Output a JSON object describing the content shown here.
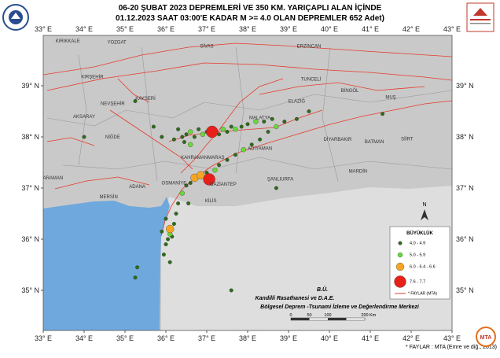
{
  "header": {
    "title_lines": [
      "06-20 ŞUBAT 2023  DEPREMLERİ VE 350  KM. YARIÇAPLI  ALAN  İÇİNDE",
      "01.12.2023 SAAT 03:00'E  KADAR M >= 4.0  OLAN DEPREMLER  652  Adet)"
    ]
  },
  "map": {
    "lon_ticks": [
      {
        "value": 33,
        "label": "33° E"
      },
      {
        "value": 34,
        "label": "34° E"
      },
      {
        "value": 35,
        "label": "35° E"
      },
      {
        "value": 36,
        "label": "36° E"
      },
      {
        "value": 37,
        "label": "37° E"
      },
      {
        "value": 38,
        "label": "38° E"
      },
      {
        "value": 39,
        "label": "39° E"
      },
      {
        "value": 40,
        "label": "40° E"
      },
      {
        "value": 41,
        "label": "41° E"
      },
      {
        "value": 42,
        "label": "42° E"
      },
      {
        "value": 43,
        "label": "43° E"
      }
    ],
    "lat_ticks": [
      {
        "value": 39,
        "label": "39° N"
      },
      {
        "value": 38,
        "label": "38° N"
      },
      {
        "value": 37,
        "label": "37° N"
      },
      {
        "value": 36,
        "label": "36° N"
      },
      {
        "value": 35,
        "label": "35° N"
      }
    ],
    "cities": [
      {
        "name": "KIRIKKALE",
        "lon": 33.6,
        "lat": 39.85
      },
      {
        "name": "YOZGAT",
        "lon": 34.8,
        "lat": 39.82
      },
      {
        "name": "SİVAS",
        "lon": 37.0,
        "lat": 39.75
      },
      {
        "name": "ERZİNCAN",
        "lon": 39.5,
        "lat": 39.75
      },
      {
        "name": "KIRŞEHİR",
        "lon": 34.2,
        "lat": 39.15
      },
      {
        "name": "TUNCELİ",
        "lon": 39.55,
        "lat": 39.1
      },
      {
        "name": "KAYSERİ",
        "lon": 35.5,
        "lat": 38.72
      },
      {
        "name": "NEVŞEHİR",
        "lon": 34.7,
        "lat": 38.62
      },
      {
        "name": "ELAZIĞ",
        "lon": 39.2,
        "lat": 38.67
      },
      {
        "name": "BİNGÖL",
        "lon": 40.5,
        "lat": 38.88
      },
      {
        "name": "MUŞ",
        "lon": 41.5,
        "lat": 38.75
      },
      {
        "name": "AKSARAY",
        "lon": 34.0,
        "lat": 38.37
      },
      {
        "name": "MALATYA",
        "lon": 38.3,
        "lat": 38.35
      },
      {
        "name": "NİĞDE",
        "lon": 34.7,
        "lat": 37.97
      },
      {
        "name": "DİYARBAKIR",
        "lon": 40.2,
        "lat": 37.92
      },
      {
        "name": "BATMAN",
        "lon": 41.1,
        "lat": 37.88
      },
      {
        "name": "SİİRT",
        "lon": 41.9,
        "lat": 37.93
      },
      {
        "name": "ADIYAMAN",
        "lon": 38.3,
        "lat": 37.75
      },
      {
        "name": "KAHRAMANMARAŞ",
        "lon": 36.9,
        "lat": 37.57
      },
      {
        "name": "MARDİN",
        "lon": 40.7,
        "lat": 37.3
      },
      {
        "name": "KARAMAN",
        "lon": 33.2,
        "lat": 37.17
      },
      {
        "name": "ŞANLIURFA",
        "lon": 38.8,
        "lat": 37.15
      },
      {
        "name": "OSMANİYE",
        "lon": 36.2,
        "lat": 37.07
      },
      {
        "name": "GAZİANTEP",
        "lon": 37.4,
        "lat": 37.05
      },
      {
        "name": "ADANA",
        "lon": 35.3,
        "lat": 37.0
      },
      {
        "name": "MERSİN",
        "lon": 34.6,
        "lat": 36.8
      },
      {
        "name": "KİLİS",
        "lon": 37.1,
        "lat": 36.72
      }
    ],
    "earthquakes": [
      {
        "lon": 36.4,
        "lat": 38.0,
        "class": 0
      },
      {
        "lon": 36.5,
        "lat": 38.05,
        "class": 0
      },
      {
        "lon": 36.6,
        "lat": 38.1,
        "class": 1
      },
      {
        "lon": 36.7,
        "lat": 38.0,
        "class": 0
      },
      {
        "lon": 36.8,
        "lat": 38.15,
        "class": 0
      },
      {
        "lon": 36.9,
        "lat": 38.05,
        "class": 1
      },
      {
        "lon": 37.0,
        "lat": 38.1,
        "class": 0
      },
      {
        "lon": 37.3,
        "lat": 38.05,
        "class": 0
      },
      {
        "lon": 37.4,
        "lat": 38.15,
        "class": 1
      },
      {
        "lon": 37.5,
        "lat": 38.1,
        "class": 0
      },
      {
        "lon": 37.6,
        "lat": 38.2,
        "class": 0
      },
      {
        "lon": 37.7,
        "lat": 38.15,
        "class": 1
      },
      {
        "lon": 37.85,
        "lat": 38.2,
        "class": 0
      },
      {
        "lon": 38.0,
        "lat": 38.25,
        "class": 0
      },
      {
        "lon": 38.2,
        "lat": 38.3,
        "class": 1
      },
      {
        "lon": 38.4,
        "lat": 38.3,
        "class": 0
      },
      {
        "lon": 38.6,
        "lat": 38.35,
        "class": 0
      },
      {
        "lon": 36.3,
        "lat": 38.15,
        "class": 0
      },
      {
        "lon": 36.45,
        "lat": 37.9,
        "class": 0
      },
      {
        "lon": 36.6,
        "lat": 37.85,
        "class": 1
      },
      {
        "lon": 36.2,
        "lat": 37.95,
        "class": 0
      },
      {
        "lon": 35.9,
        "lat": 38.0,
        "class": 0
      },
      {
        "lon": 35.7,
        "lat": 38.2,
        "class": 0
      },
      {
        "lon": 36.15,
        "lat": 36.05,
        "class": 0
      },
      {
        "lon": 36.1,
        "lat": 36.1,
        "class": 1
      },
      {
        "lon": 36.2,
        "lat": 36.3,
        "class": 0
      },
      {
        "lon": 36.05,
        "lat": 36.0,
        "class": 0
      },
      {
        "lon": 36.25,
        "lat": 36.5,
        "class": 0
      },
      {
        "lon": 36.3,
        "lat": 36.7,
        "class": 0
      },
      {
        "lon": 36.4,
        "lat": 36.9,
        "class": 1
      },
      {
        "lon": 36.5,
        "lat": 37.05,
        "class": 0
      },
      {
        "lon": 36.6,
        "lat": 37.1,
        "class": 0
      },
      {
        "lon": 37.0,
        "lat": 37.3,
        "class": 0
      },
      {
        "lon": 37.2,
        "lat": 37.35,
        "class": 1
      },
      {
        "lon": 37.3,
        "lat": 37.45,
        "class": 0
      },
      {
        "lon": 37.5,
        "lat": 37.55,
        "class": 0
      },
      {
        "lon": 37.7,
        "lat": 37.65,
        "class": 0
      },
      {
        "lon": 37.9,
        "lat": 37.75,
        "class": 1
      },
      {
        "lon": 38.1,
        "lat": 37.85,
        "class": 0
      },
      {
        "lon": 38.3,
        "lat": 37.95,
        "class": 0
      },
      {
        "lon": 38.5,
        "lat": 38.1,
        "class": 0
      },
      {
        "lon": 38.7,
        "lat": 38.2,
        "class": 1
      },
      {
        "lon": 38.9,
        "lat": 38.3,
        "class": 0
      },
      {
        "lon": 39.2,
        "lat": 38.35,
        "class": 0
      },
      {
        "lon": 39.5,
        "lat": 38.5,
        "class": 0
      },
      {
        "lon": 36.55,
        "lat": 36.7,
        "class": 0
      },
      {
        "lon": 36.0,
        "lat": 36.4,
        "class": 0
      },
      {
        "lon": 35.9,
        "lat": 36.15,
        "class": 0
      },
      {
        "lon": 36.0,
        "lat": 35.9,
        "class": 0
      },
      {
        "lon": 35.95,
        "lat": 35.7,
        "class": 0
      },
      {
        "lon": 36.1,
        "lat": 35.55,
        "class": 0
      },
      {
        "lon": 35.3,
        "lat": 35.45,
        "class": 0
      },
      {
        "lon": 35.25,
        "lat": 35.25,
        "class": 0
      },
      {
        "lon": 37.6,
        "lat": 35.0,
        "class": 0
      },
      {
        "lon": 35.25,
        "lat": 38.7,
        "class": 0
      },
      {
        "lon": 34.0,
        "lat": 38.0,
        "class": 0
      },
      {
        "lon": 38.7,
        "lat": 37.0,
        "class": 0
      },
      {
        "lon": 41.3,
        "lat": 38.45,
        "class": 0
      },
      {
        "lon": 36.1,
        "lat": 36.2,
        "class": 2
      },
      {
        "lon": 36.7,
        "lat": 37.2,
        "class": 2
      },
      {
        "lon": 36.85,
        "lat": 37.25,
        "class": 2
      },
      {
        "lon": 37.13,
        "lat": 38.1,
        "class": 3
      },
      {
        "lon": 37.06,
        "lat": 37.17,
        "class": 3
      }
    ]
  },
  "legend": {
    "title": "BÜYÜKLÜK",
    "items": [
      {
        "label": "4.0 - 4.9",
        "color": "#2e6b1a"
      },
      {
        "label": "5.0 - 5.9",
        "color": "#6ad83a"
      },
      {
        "label": "6.0 - 6.4 - 6.6",
        "color": "#f5a623"
      },
      {
        "label": "7.6 - 7.7",
        "color": "#e8201a"
      }
    ],
    "fault_label": "* FAYLAR (MTA)"
  },
  "north": "N",
  "credits": [
    "B.Ü.",
    "Kandilli Rasathanesi ve D.A.E.",
    "Bölgesel Deprem -Tsunami İzleme ve Değerlendirme Merkezi"
  ],
  "scale": {
    "labels": [
      "0",
      "50",
      "100",
      "200"
    ],
    "unit": "Km"
  },
  "footnote": "* FAYLAR : MTA (Emre ve diğ., 2013)"
}
